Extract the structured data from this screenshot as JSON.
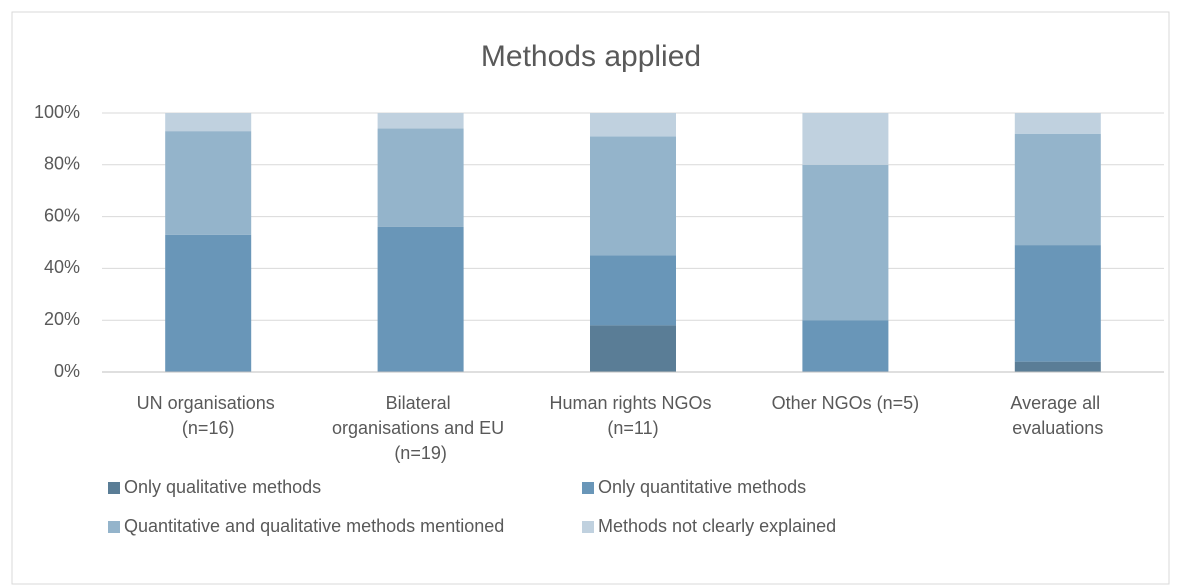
{
  "chart_data": {
    "type": "stacked_bar",
    "title": "Methods applied",
    "categories": [
      "UN organisations\n(n=16)",
      "Bilateral\norganisations and EU\n(n=19)",
      "Human rights NGOs\n(n=11)",
      "Other NGOs (n=5)",
      "Average all\nevaluations"
    ],
    "series": [
      {
        "name": "Only qualitative methods",
        "color": "#5a7d96",
        "values": [
          0,
          0,
          18,
          0,
          4
        ]
      },
      {
        "name": "Only quantitative methods",
        "color": "#6996b8",
        "values": [
          53,
          56,
          27,
          20,
          45
        ]
      },
      {
        "name": "Quantitative and qualitative methods mentioned",
        "color": "#94b4cb",
        "values": [
          40,
          38,
          46,
          60,
          43
        ]
      },
      {
        "name": "Methods not clearly explained",
        "color": "#c0d1df",
        "values": [
          7,
          6,
          9,
          20,
          8
        ]
      }
    ],
    "ylim": [
      0,
      100
    ],
    "yticks": [
      {
        "value": 0,
        "label": "0%"
      },
      {
        "value": 20,
        "label": "20%"
      },
      {
        "value": 40,
        "label": "40%"
      },
      {
        "value": 60,
        "label": "60%"
      },
      {
        "value": 80,
        "label": "80%"
      },
      {
        "value": 100,
        "label": "100%"
      }
    ],
    "grid": true,
    "legend": "bottom"
  }
}
